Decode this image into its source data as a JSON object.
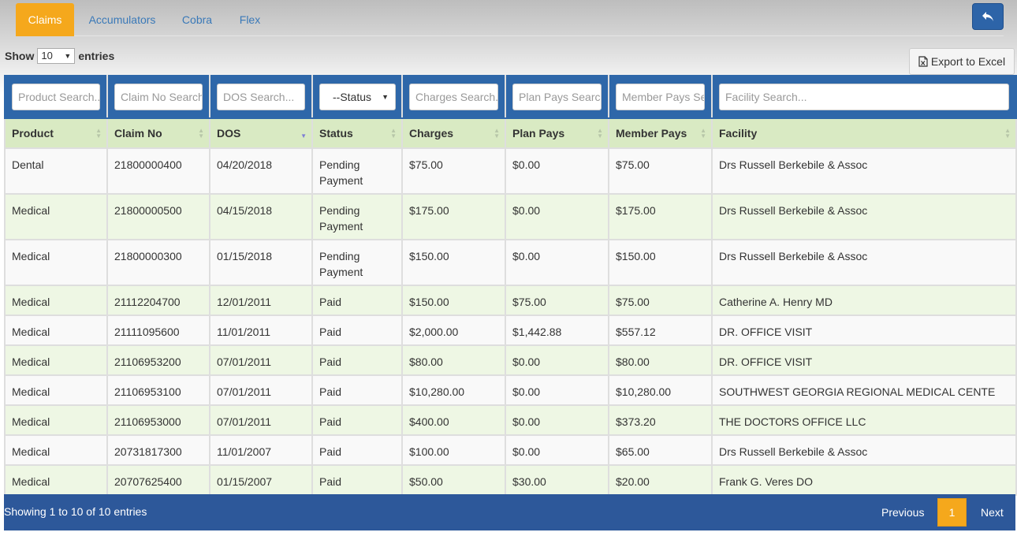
{
  "tabs": [
    {
      "label": "Claims",
      "active": true
    },
    {
      "label": "Accumulators",
      "active": false
    },
    {
      "label": "Cobra",
      "active": false
    },
    {
      "label": "Flex",
      "active": false
    }
  ],
  "length": {
    "show_label": "Show",
    "value": "10",
    "entries_label": "entries"
  },
  "export_label": "Export to Excel",
  "search": {
    "product": "Product Search...",
    "claim_no": "Claim No Search...",
    "dos": "DOS Search...",
    "status": "--Status",
    "charges": "Charges Search...",
    "plan_pays": "Plan Pays Search...",
    "member_pays": "Member Pays Search...",
    "facility": "Facility Search..."
  },
  "columns": [
    "Product",
    "Claim No",
    "DOS",
    "Status",
    "Charges",
    "Plan Pays",
    "Member Pays",
    "Facility"
  ],
  "rows": [
    [
      "Dental",
      "21800000400",
      "04/20/2018",
      "Pending Payment",
      "$75.00",
      "$0.00",
      "$75.00",
      "Drs Russell Berkebile & Assoc"
    ],
    [
      "Medical",
      "21800000500",
      "04/15/2018",
      "Pending Payment",
      "$175.00",
      "$0.00",
      "$175.00",
      "Drs Russell Berkebile & Assoc"
    ],
    [
      "Medical",
      "21800000300",
      "01/15/2018",
      "Pending Payment",
      "$150.00",
      "$0.00",
      "$150.00",
      "Drs Russell Berkebile & Assoc"
    ],
    [
      "Medical",
      "21112204700",
      "12/01/2011",
      "Paid",
      "$150.00",
      "$75.00",
      "$75.00",
      "Catherine A. Henry MD"
    ],
    [
      "Medical",
      "21111095600",
      "11/01/2011",
      "Paid",
      "$2,000.00",
      "$1,442.88",
      "$557.12",
      "DR. OFFICE VISIT"
    ],
    [
      "Medical",
      "21106953200",
      "07/01/2011",
      "Paid",
      "$80.00",
      "$0.00",
      "$80.00",
      "DR. OFFICE VISIT"
    ],
    [
      "Medical",
      "21106953100",
      "07/01/2011",
      "Paid",
      "$10,280.00",
      "$0.00",
      "$10,280.00",
      "SOUTHWEST GEORGIA REGIONAL MEDICAL CENTE"
    ],
    [
      "Medical",
      "21106953000",
      "07/01/2011",
      "Paid",
      "$400.00",
      "$0.00",
      "$373.20",
      "THE DOCTORS OFFICE LLC"
    ],
    [
      "Medical",
      "20731817300",
      "11/01/2007",
      "Paid",
      "$100.00",
      "$0.00",
      "$65.00",
      "Drs Russell Berkebile & Assoc"
    ],
    [
      "Medical",
      "20707625400",
      "01/15/2007",
      "Paid",
      "$50.00",
      "$30.00",
      "$20.00",
      "Frank G. Veres DO"
    ]
  ],
  "footer": {
    "info": "Showing 1 to 10 of 10 entries",
    "previous": "Previous",
    "page": "1",
    "next": "Next"
  },
  "colors": {
    "accent": "#f5a81c",
    "header_blue": "#2e67a9",
    "footer_blue": "#2d589a",
    "header_green": "#d9eac3"
  },
  "icons": {
    "back": "reply-arrow-icon",
    "export": "excel-file-icon",
    "sort": "sort-both-icon",
    "sort_active": "sort-desc-icon"
  }
}
